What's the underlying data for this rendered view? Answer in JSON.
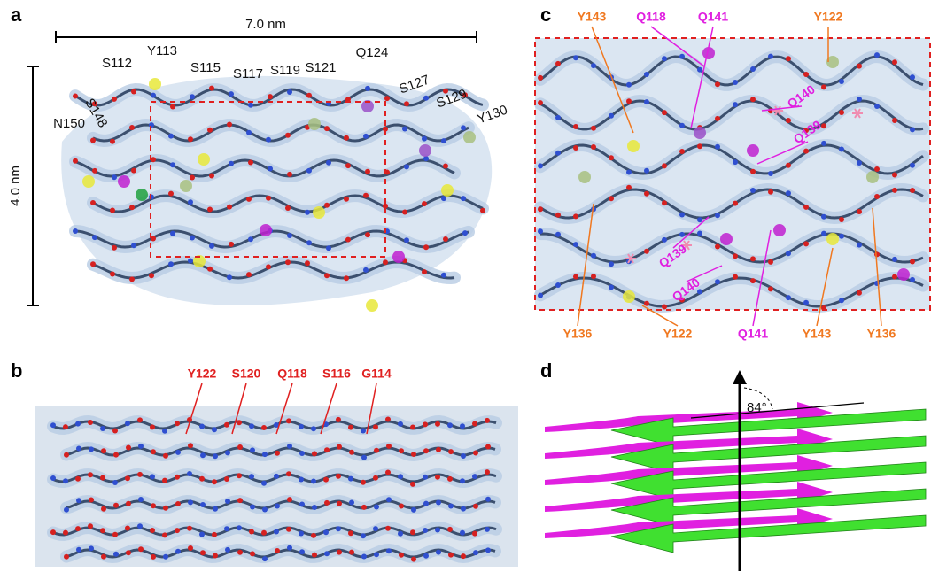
{
  "panels": {
    "a": {
      "label": "a",
      "width_scale": "7.0 nm",
      "height_scale": "4.0 nm",
      "residues": [
        "S112",
        "Y113",
        "S115",
        "S117",
        "S119",
        "S121",
        "Q124",
        "S127",
        "S129",
        "Y130",
        "N150",
        "S148"
      ]
    },
    "b": {
      "label": "b",
      "residues": [
        "Y122",
        "S120",
        "Q118",
        "S116",
        "G114"
      ]
    },
    "c": {
      "label": "c",
      "residues": [
        "Y143",
        "Q118",
        "Q141",
        "Y122",
        "Q140",
        "Q139",
        "Q139",
        "Q140",
        "Y136",
        "Y122",
        "Q141",
        "Y143",
        "Y136"
      ]
    },
    "d": {
      "label": "d",
      "angle": "84°"
    }
  }
}
